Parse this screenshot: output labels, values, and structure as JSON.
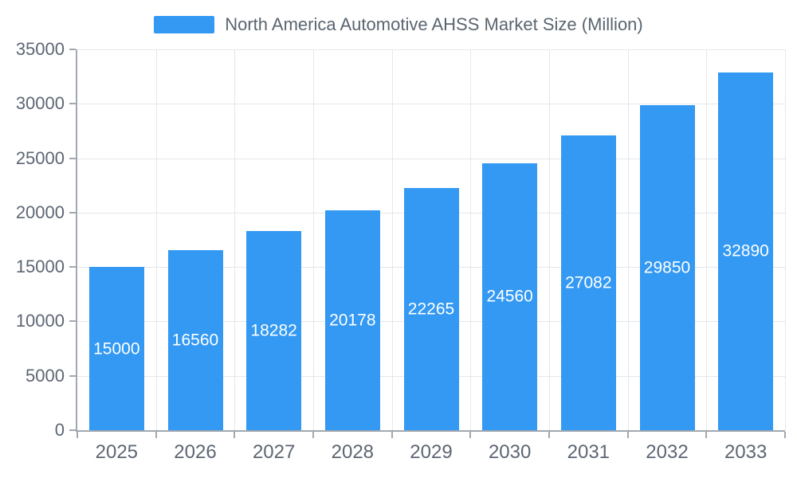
{
  "legend": {
    "label": "North America Automotive AHSS Market Size (Million)",
    "swatch_color": "#3399f3"
  },
  "chart_data": {
    "type": "bar",
    "title": "North America Automotive AHSS Market Size (Million)",
    "categories": [
      "2025",
      "2026",
      "2027",
      "2028",
      "2029",
      "2030",
      "2031",
      "2032",
      "2033"
    ],
    "values": [
      15000,
      16560,
      18282,
      20178,
      22265,
      24560,
      27082,
      29850,
      32890
    ],
    "xlabel": "",
    "ylabel": "",
    "ylim": [
      0,
      35000
    ],
    "ytick_step": 5000,
    "grid": true,
    "legend_position": "top",
    "bar_color": "#3399f3",
    "value_label_color": "#ffffff",
    "value_label_position": "center-of-bar"
  }
}
